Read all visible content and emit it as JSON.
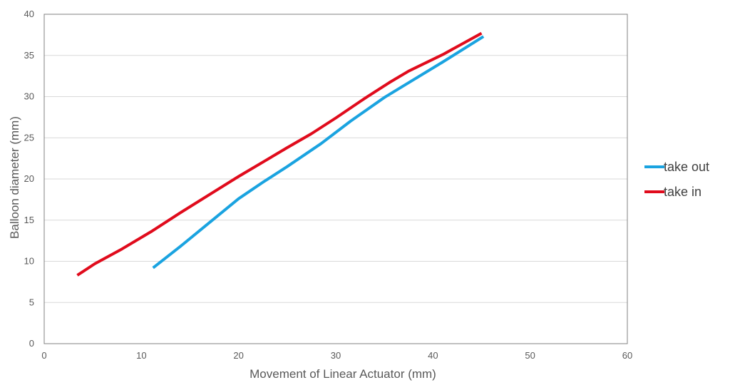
{
  "chart_data": {
    "type": "line",
    "title": "",
    "xlabel": "Movement of Linear Actuator (mm)",
    "ylabel": "Balloon diameter (mm)",
    "xlim": [
      0,
      60
    ],
    "ylim": [
      0,
      40
    ],
    "x_ticks": [
      0,
      10,
      20,
      30,
      40,
      50,
      60
    ],
    "y_ticks": [
      0,
      5,
      10,
      15,
      20,
      25,
      30,
      35,
      40
    ],
    "grid": "horizontal",
    "legend_position": "right",
    "series": [
      {
        "name": "take out",
        "color": "#1aa3e0",
        "x": [
          11.2,
          14,
          17,
          20,
          22.5,
          25,
          28.5,
          31.5,
          35,
          37.5,
          41,
          45.2
        ],
        "y": [
          9.2,
          11.8,
          14.7,
          17.6,
          19.6,
          21.5,
          24.3,
          27,
          29.9,
          31.7,
          34.2,
          37.3
        ]
      },
      {
        "name": "take in",
        "color": "#e00b1c",
        "x": [
          3.4,
          5.2,
          8,
          11,
          14,
          17,
          20,
          23,
          25,
          27.5,
          30,
          33,
          35.5,
          37.5,
          41,
          45
        ],
        "y": [
          8.3,
          9.7,
          11.5,
          13.6,
          15.9,
          18.1,
          20.3,
          22.4,
          23.8,
          25.5,
          27.4,
          29.8,
          31.7,
          33.1,
          35.1,
          37.7
        ]
      }
    ]
  }
}
